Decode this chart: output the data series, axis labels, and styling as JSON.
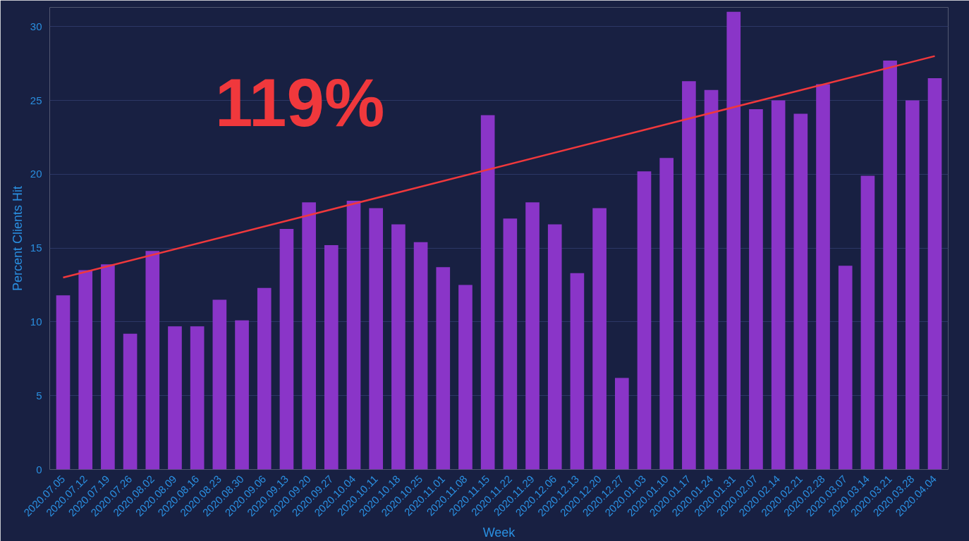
{
  "chart_data": {
    "type": "bar",
    "xlabel": "Week",
    "ylabel": "Percent Clients Hit",
    "categories": [
      "2020.07.05",
      "2020.07.12",
      "2020.07.19",
      "2020.07.26",
      "2020.08.02",
      "2020.08.09",
      "2020.08.16",
      "2020.08.23",
      "2020.08.30",
      "2020.09.06",
      "2020.09.13",
      "2020.09.20",
      "2020.09.27",
      "2020.10.04",
      "2020.10.11",
      "2020.10.18",
      "2020.10.25",
      "2020.11.01",
      "2020.11.08",
      "2020.11.15",
      "2020.11.22",
      "2020.11.29",
      "2020.12.06",
      "2020.12.13",
      "2020.12.20",
      "2020.12.27",
      "2020.01.03",
      "2020.01.10",
      "2020.01.17",
      "2020.01.24",
      "2020.01.31",
      "2020.02.07",
      "2020.02.14",
      "2020.02.21",
      "2020.02.28",
      "2020.03.07",
      "2020.03.14",
      "2020.03.21",
      "2020.03.28",
      "2020.04.04"
    ],
    "series": [
      {
        "color": "#8a35c8",
        "values": [
          11.8,
          13.5,
          13.9,
          9.2,
          14.8,
          9.7,
          9.7,
          11.5,
          10.1,
          12.3,
          16.3,
          18.1,
          15.2,
          18.2,
          17.7,
          16.6,
          15.4,
          13.7,
          12.5,
          24.0,
          17.0,
          18.1,
          16.6,
          13.3,
          17.7,
          6.2,
          20.2,
          21.1,
          26.3,
          25.7,
          31.0,
          24.4,
          25.0,
          24.1,
          26.1,
          13.8,
          19.9,
          27.7,
          25.0,
          26.5
        ]
      },
      {
        "type": "line",
        "color": "#f0383c",
        "x": [
          "2020.07.05",
          "2020.04.04"
        ],
        "values": [
          13.0,
          28.0
        ]
      }
    ],
    "ylim": [
      0,
      31.3
    ],
    "yticks": [
      0,
      5,
      10,
      15,
      20,
      25,
      30
    ],
    "grid": "y",
    "annotations": [
      "119%"
    ]
  }
}
